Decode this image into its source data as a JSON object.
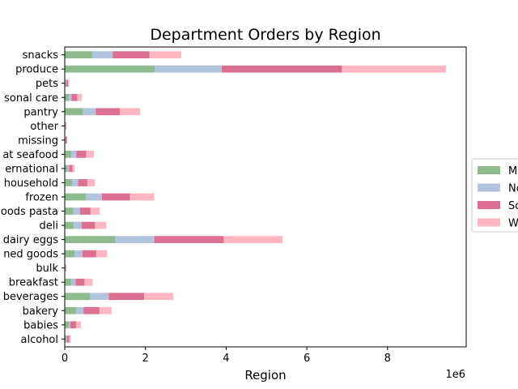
{
  "chart_data": {
    "type": "bar",
    "orientation": "horizontal",
    "stacked": true,
    "title": "Department Orders by Region",
    "xlabel": "Region",
    "ylabel": "",
    "x_multiplier_label": "1e6",
    "xlim": [
      0,
      9.95
    ],
    "x_ticks": [
      0,
      2,
      4,
      6,
      8
    ],
    "x_tick_labels": [
      "0",
      "2",
      "4",
      "6",
      "8"
    ],
    "grid": false,
    "legend_position": "center-right",
    "categories": [
      "alcohol",
      "babies",
      "bakery",
      "beverages",
      "breakfast",
      "bulk",
      "canned goods",
      "dairy eggs",
      "deli",
      "dry goods pasta",
      "frozen",
      "household",
      "international",
      "meat seafood",
      "missing",
      "other",
      "pantry",
      "personal care",
      "pets",
      "produce",
      "snacks"
    ],
    "category_labels": [
      "alcohol",
      "babies",
      "bakery",
      "beverages",
      "breakfast",
      "bulk",
      "ned goods",
      "dairy eggs",
      "deli",
      "oods pasta",
      "frozen",
      "household",
      "ernational",
      "at seafood",
      "missing",
      "other",
      "pantry",
      "sonal care",
      "pets",
      "produce",
      "snacks"
    ],
    "series": [
      {
        "name": "M",
        "color": "#8fbc8f",
        "values": [
          0.03,
          0.1,
          0.28,
          0.63,
          0.16,
          0.01,
          0.24,
          1.26,
          0.22,
          0.21,
          0.53,
          0.18,
          0.06,
          0.16,
          0.01,
          0.01,
          0.45,
          0.1,
          0.02,
          2.23,
          0.69
        ]
      },
      {
        "name": "No",
        "color": "#b0c4de",
        "values": [
          0.03,
          0.04,
          0.19,
          0.46,
          0.11,
          0.01,
          0.2,
          0.96,
          0.2,
          0.17,
          0.39,
          0.15,
          0.05,
          0.13,
          0.01,
          0.01,
          0.32,
          0.07,
          0.02,
          1.66,
          0.5
        ]
      },
      {
        "name": "So",
        "color": "#db7093",
        "values": [
          0.05,
          0.14,
          0.39,
          0.88,
          0.22,
          0.01,
          0.34,
          1.72,
          0.33,
          0.26,
          0.7,
          0.23,
          0.08,
          0.24,
          0.03,
          0.01,
          0.6,
          0.14,
          0.04,
          2.98,
          0.91
        ]
      },
      {
        "name": "W",
        "color": "#ffb6c1",
        "values": [
          0.04,
          0.12,
          0.3,
          0.72,
          0.2,
          0.01,
          0.27,
          1.46,
          0.28,
          0.23,
          0.6,
          0.19,
          0.06,
          0.19,
          0.01,
          0.01,
          0.5,
          0.12,
          0.03,
          2.58,
          0.79
        ]
      }
    ]
  }
}
